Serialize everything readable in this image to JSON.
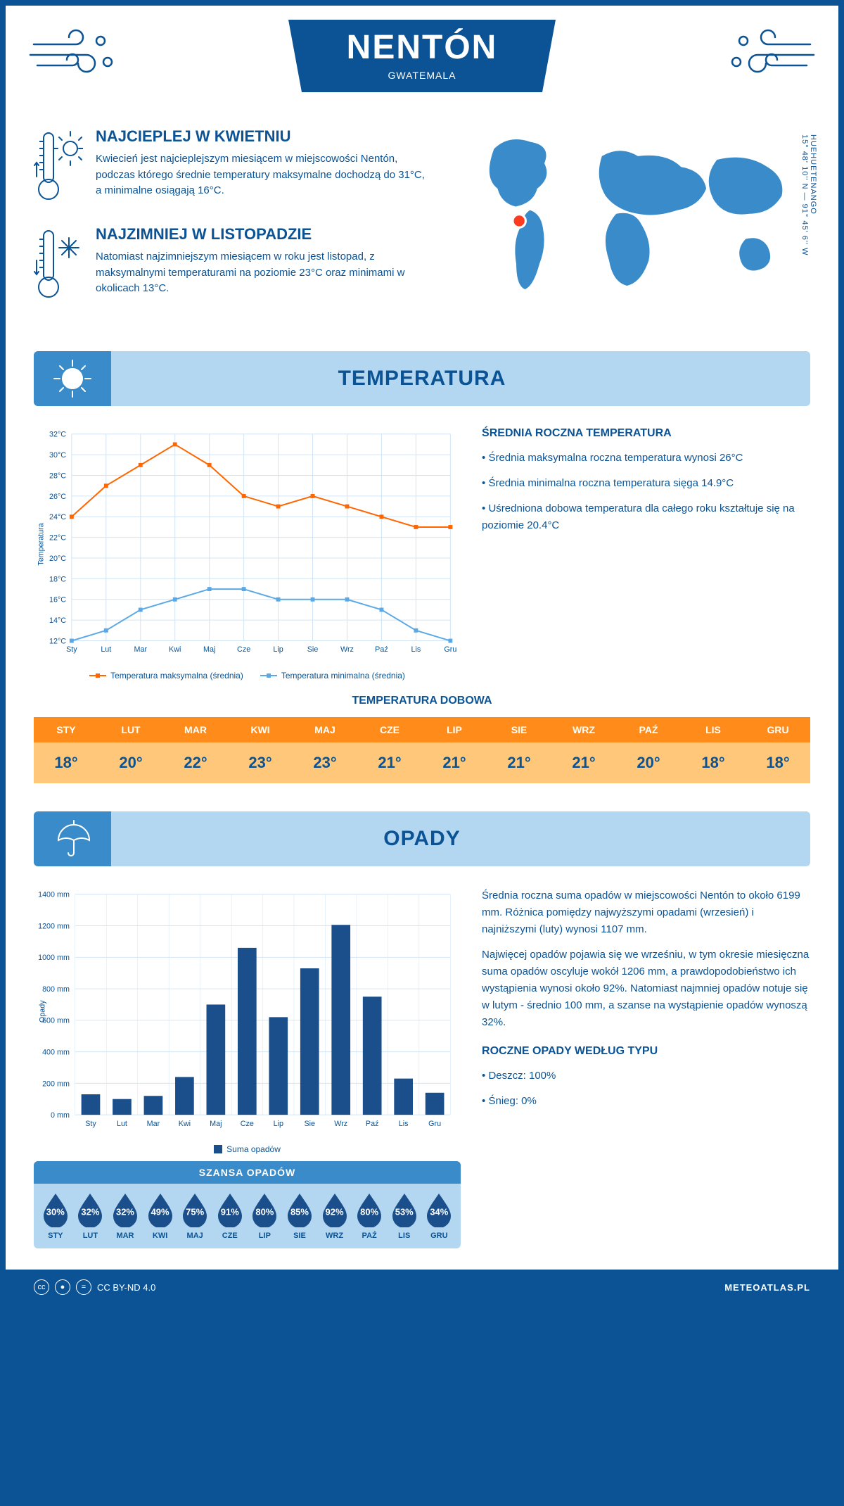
{
  "header": {
    "city": "NENTÓN",
    "country": "GWATEMALA"
  },
  "coords": {
    "text": "15° 48' 10'' N — 91° 45' 6'' W",
    "region": "HUEHUETENANGO"
  },
  "facts": {
    "warm": {
      "title": "NAJCIEPLEJ W KWIETNIU",
      "text": "Kwiecień jest najcieplejszym miesiącem w miejscowości Nentón, podczas którego średnie temperatury maksymalne dochodzą do 31°C, a minimalne osiągają 16°C."
    },
    "cold": {
      "title": "NAJZIMNIEJ W LISTOPADZIE",
      "text": "Natomiast najzimniejszym miesiącem w roku jest listopad, z maksymalnymi temperaturami na poziomie 23°C oraz minimami w okolicach 13°C."
    }
  },
  "sections": {
    "temperature": "TEMPERATURA",
    "precipitation": "OPADY"
  },
  "temp_chart": {
    "type": "line",
    "months": [
      "Sty",
      "Lut",
      "Mar",
      "Kwi",
      "Maj",
      "Cze",
      "Lip",
      "Sie",
      "Wrz",
      "Paź",
      "Lis",
      "Gru"
    ],
    "max_series": [
      24,
      27,
      29,
      31,
      29,
      26,
      25,
      26,
      25,
      24,
      23,
      23
    ],
    "min_series": [
      12,
      13,
      15,
      16,
      17,
      17,
      16,
      16,
      16,
      15,
      13,
      12
    ],
    "ylim": [
      12,
      32
    ],
    "ytick_step": 2,
    "ylabel": "Temperatura",
    "max_color": "#ff6600",
    "min_color": "#5aa9e6",
    "grid_color": "#d0e4f5",
    "background_color": "#ffffff",
    "legend_max": "Temperatura maksymalna (średnia)",
    "legend_min": "Temperatura minimalna (średnia)"
  },
  "temp_text": {
    "heading": "ŚREDNIA ROCZNA TEMPERATURA",
    "b1": "• Średnia maksymalna roczna temperatura wynosi 26°C",
    "b2": "• Średnia minimalna roczna temperatura sięga 14.9°C",
    "b3": "• Uśredniona dobowa temperatura dla całego roku kształtuje się na poziomie 20.4°C"
  },
  "daily": {
    "heading": "TEMPERATURA DOBOWA",
    "months": [
      "STY",
      "LUT",
      "MAR",
      "KWI",
      "MAJ",
      "CZE",
      "LIP",
      "SIE",
      "WRZ",
      "PAŹ",
      "LIS",
      "GRU"
    ],
    "values": [
      "18°",
      "20°",
      "22°",
      "23°",
      "23°",
      "21°",
      "21°",
      "21°",
      "21°",
      "20°",
      "18°",
      "18°"
    ],
    "header_bg": "#ff8c1a",
    "cell_bg": "#ffc77a"
  },
  "precip_chart": {
    "type": "bar",
    "months": [
      "Sty",
      "Lut",
      "Mar",
      "Kwi",
      "Maj",
      "Cze",
      "Lip",
      "Sie",
      "Wrz",
      "Paź",
      "Lis",
      "Gru"
    ],
    "values": [
      130,
      100,
      120,
      240,
      700,
      1060,
      620,
      930,
      1206,
      750,
      230,
      140
    ],
    "ylim": [
      0,
      1400
    ],
    "ytick_step": 200,
    "ylabel": "Opady",
    "bar_color": "#1b4f8b",
    "grid_color": "#d0e4f5",
    "background_color": "#ffffff",
    "legend": "Suma opadów"
  },
  "precip_text": {
    "p1": "Średnia roczna suma opadów w miejscowości Nentón to około 6199 mm. Różnica pomiędzy najwyższymi opadami (wrzesień) i najniższymi (luty) wynosi 1107 mm.",
    "p2": "Najwięcej opadów pojawia się we wrześniu, w tym okresie miesięczna suma opadów oscyluje wokół 1206 mm, a prawdopodobieństwo ich wystąpienia wynosi około 92%. Natomiast najmniej opadów notuje się w lutym - średnio 100 mm, a szanse na wystąpienie opadów wynoszą 32%.",
    "type_heading": "ROCZNE OPADY WEDŁUG TYPU",
    "rain": "• Deszcz: 100%",
    "snow": "• Śnieg: 0%"
  },
  "chance": {
    "heading": "SZANSA OPADÓW",
    "months": [
      "STY",
      "LUT",
      "MAR",
      "KWI",
      "MAJ",
      "CZE",
      "LIP",
      "SIE",
      "WRZ",
      "PAŹ",
      "LIS",
      "GRU"
    ],
    "values": [
      "30%",
      "32%",
      "32%",
      "49%",
      "75%",
      "91%",
      "80%",
      "85%",
      "92%",
      "80%",
      "53%",
      "34%"
    ],
    "drop_color": "#1b4f8b"
  },
  "footer": {
    "license": "CC BY-ND 4.0",
    "site": "METEOATLAS.PL"
  },
  "colors": {
    "primary": "#0b5394",
    "banner_bg": "#b3d7f0",
    "banner_icon_bg": "#3a8bc9"
  }
}
